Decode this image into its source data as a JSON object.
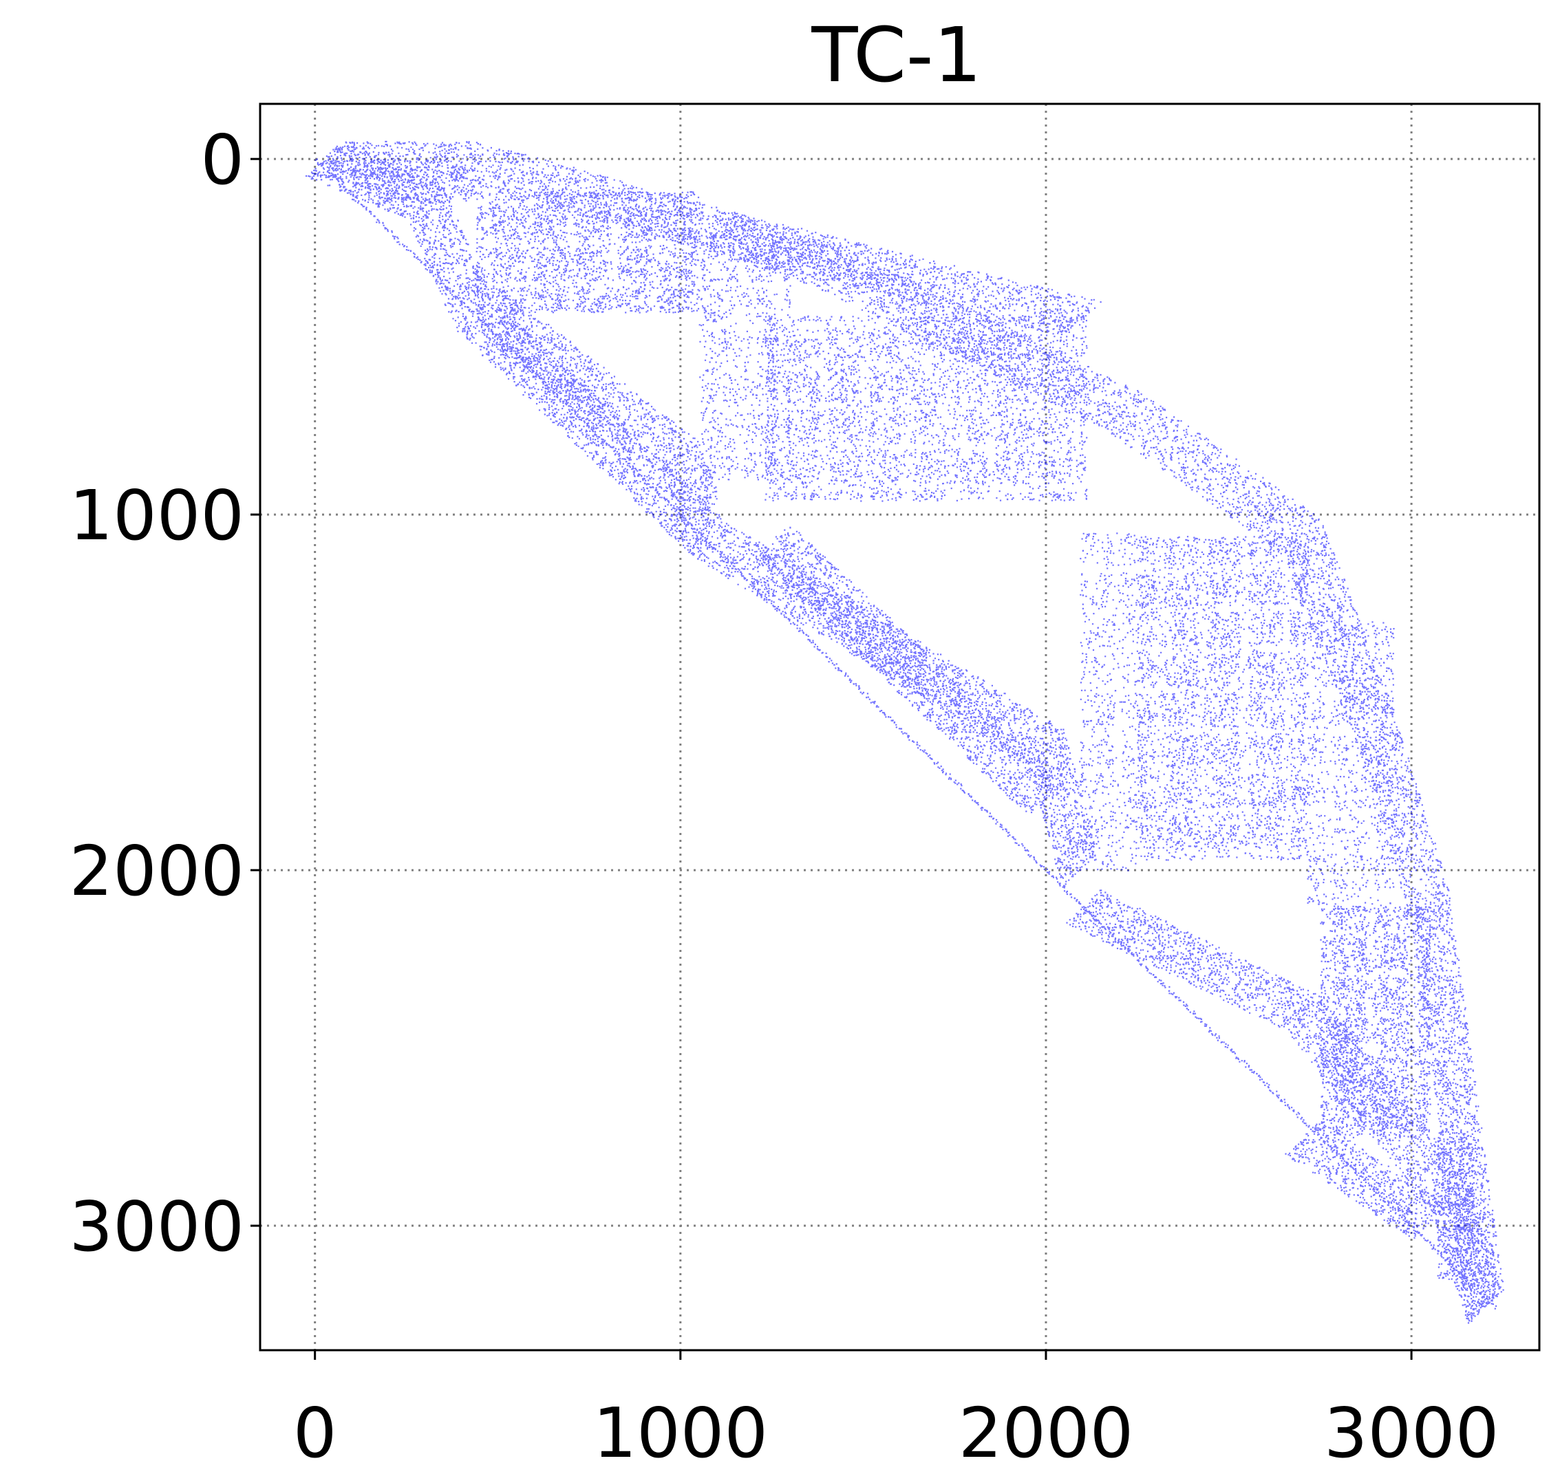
{
  "chart_data": {
    "type": "scatter",
    "title": "TC-1",
    "xlabel": "",
    "ylabel": "",
    "xlim": [
      -150,
      3350
    ],
    "ylim": [
      3350,
      -155
    ],
    "y_inverted": true,
    "grid": true,
    "grid_style": "dotted",
    "marker_color": "#0000ff",
    "x_ticks": [
      0,
      1000,
      2000,
      3000
    ],
    "x_tick_labels": [
      "0",
      "1000",
      "2000",
      "3000"
    ],
    "y_ticks": [
      0,
      1000,
      2000,
      3000
    ],
    "y_tick_labels": [
      "0",
      "1000",
      "2000",
      "3000"
    ],
    "description_of_density": "sparse symmetric-pattern matrix; dense block regions listed as [x0, x1, y0, y1, density]",
    "dense_blocks": [
      [
        100,
        440,
        0,
        120,
        0.75
      ],
      [
        440,
        1050,
        90,
        430,
        0.85
      ],
      [
        1230,
        2110,
        440,
        960,
        0.9
      ],
      [
        1050,
        1300,
        200,
        900,
        0.4
      ],
      [
        2250,
        2710,
        1060,
        1970,
        0.9
      ],
      [
        2090,
        2250,
        1050,
        2000,
        0.35
      ],
      [
        2710,
        2950,
        1300,
        2100,
        0.35
      ],
      [
        2750,
        3050,
        2100,
        2750,
        0.85
      ],
      [
        3070,
        3170,
        2730,
        3150,
        0.85
      ]
    ],
    "lower_bands": [
      [
        [
          20,
          0
        ],
        [
          300,
          120
        ],
        [
          430,
          430
        ],
        [
          1060,
          1050
        ]
      ],
      [
        [
          500,
          440
        ],
        [
          1000,
          840
        ],
        [
          1060,
          1000
        ]
      ],
      [
        [
          1050,
          1050
        ],
        [
          2000,
          1650
        ],
        [
          2090,
          2000
        ]
      ],
      [
        [
          1250,
          1070
        ],
        [
          2000,
          1800
        ]
      ],
      [
        [
          2100,
          2100
        ],
        [
          2700,
          2400
        ],
        [
          3100,
          2900
        ],
        [
          3200,
          3230
        ]
      ],
      [
        [
          2700,
          2750
        ],
        [
          3050,
          2990
        ]
      ]
    ],
    "upper_bands": [
      [
        [
          20,
          0
        ],
        [
          400,
          0
        ],
        [
          1100,
          200
        ],
        [
          2100,
          450
        ]
      ],
      [
        [
          1100,
          200
        ],
        [
          1400,
          300
        ],
        [
          2200,
          700
        ],
        [
          2700,
          1060
        ]
      ],
      [
        [
          2700,
          1060
        ],
        [
          2900,
          1600
        ],
        [
          3050,
          2100
        ],
        [
          3200,
          3230
        ]
      ]
    ]
  }
}
